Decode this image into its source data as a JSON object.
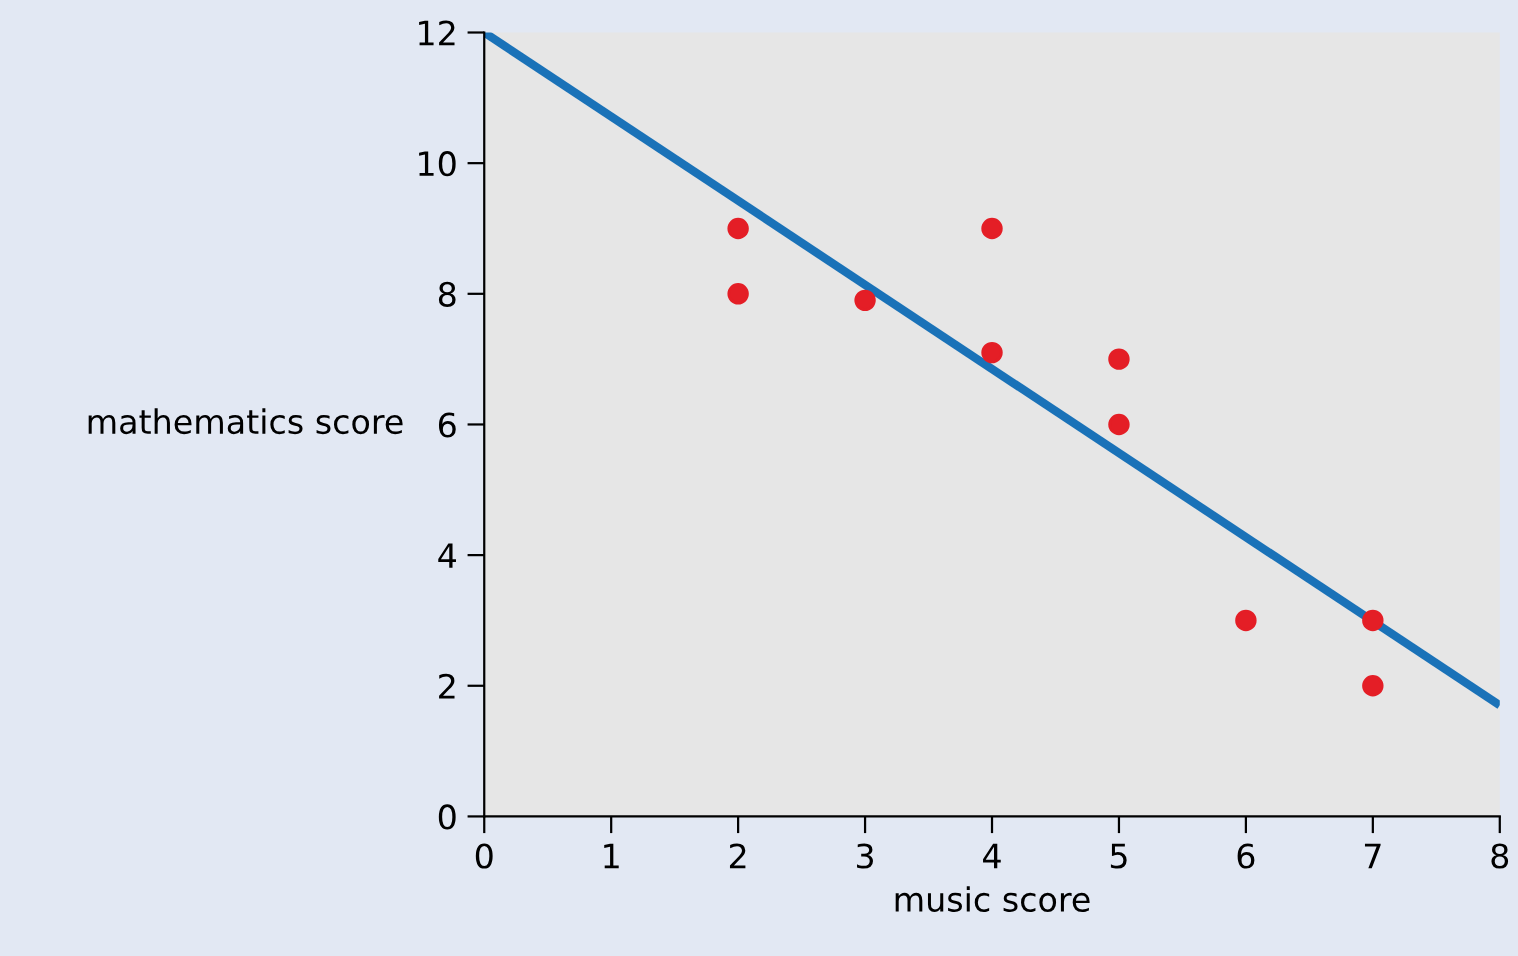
{
  "chart_data": {
    "type": "scatter",
    "xlabel": "music score",
    "ylabel": "mathematics score",
    "xlim": [
      0,
      8
    ],
    "ylim": [
      0,
      12
    ],
    "xticks": [
      0,
      1,
      2,
      3,
      4,
      5,
      6,
      7,
      8
    ],
    "yticks": [
      0,
      2,
      4,
      6,
      8,
      10,
      12
    ],
    "grid": false,
    "series": [
      {
        "color": "#e41e26",
        "marker": "circle",
        "x": [
          2,
          2,
          3,
          4,
          4,
          5,
          5,
          6,
          7,
          7
        ],
        "values": [
          9,
          8,
          7.9,
          9,
          7.1,
          7,
          6,
          3,
          3,
          2
        ]
      },
      {
        "type": "line",
        "color": "#1a72b8",
        "marker": "none",
        "line_style": "solid",
        "x": [
          0,
          8
        ],
        "values": [
          12,
          1.7
        ]
      }
    ]
  }
}
